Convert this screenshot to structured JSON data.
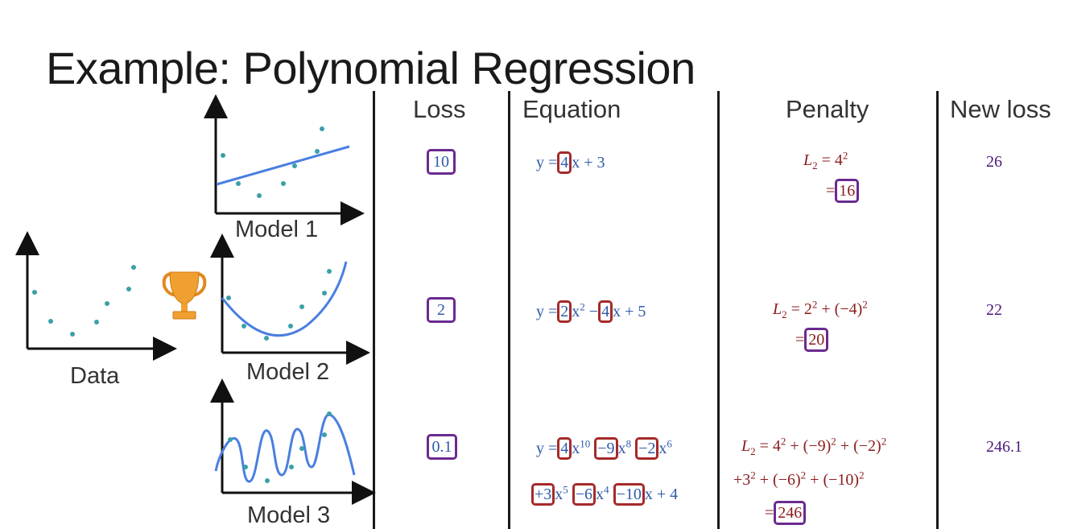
{
  "title": "Example: Polynomial Regression",
  "columns": {
    "loss": "Loss",
    "equation": "Equation",
    "penalty": "Penalty",
    "new_loss": "New loss"
  },
  "plots": {
    "data_label": "Data",
    "model1_label": "Model 1",
    "model2_label": "Model 2",
    "model3_label": "Model 3",
    "trophy": "trophy-icon"
  },
  "rows": [
    {
      "loss": "10",
      "new_loss": "26"
    },
    {
      "loss": "2",
      "new_loss": "22"
    },
    {
      "loss": "0.1",
      "new_loss": "246.1"
    }
  ],
  "equations": {
    "row1": {
      "y_eq": "y =",
      "c1": "4",
      "t1": "x + 3"
    },
    "row2": {
      "y_eq": "y =",
      "c1": "2",
      "t1": "x",
      "t1_exp": "2",
      "minus": " −",
      "c2": "4",
      "t2": "x + 5"
    },
    "row3": {
      "y_eq": "y =",
      "c1": "4",
      "t1": "x",
      "t1_exp": "10",
      "c2": "−9",
      "t2": "x",
      "t2_exp": "8",
      "c3": "−2",
      "t3": "x",
      "t3_exp": "6",
      "c4": "+3",
      "t4": "x",
      "t4_exp": "5",
      "c5": "−6",
      "t5": "x",
      "t5_exp": "4",
      "c6": "−10",
      "t6": "x + 4"
    }
  },
  "penalties": {
    "row1": {
      "lhs": "L",
      "sub": "2",
      "expr": " = 4",
      "expr_exp": "2",
      "eq": "=",
      "result": "16"
    },
    "row2": {
      "lhs": "L",
      "sub": "2",
      "expr_a": " = 2",
      "expr_a_exp": "2",
      "expr_b": " + (−4)",
      "expr_b_exp": "2",
      "eq": "=",
      "result": "20"
    },
    "row3": {
      "lhs": "L",
      "sub": "2",
      "l1a": " = 4",
      "l1a_exp": "2",
      "l1b": " + (−9)",
      "l1b_exp": "2",
      "l1c": " + (−2)",
      "l1c_exp": "2",
      "l2a": "+3",
      "l2a_exp": "2",
      "l2b": " + (−6)",
      "l2b_exp": "2",
      "l2c": " + (−10)",
      "l2c_exp": "2",
      "eq": "=",
      "result": "246"
    }
  },
  "colors": {
    "line": "#4a7fe0",
    "dot": "#3aa0a8",
    "box_red": "#a52a2a",
    "box_purple": "#6a2a8f",
    "trophy": "#f0a030"
  },
  "chart_data": [
    {
      "type": "scatter",
      "title": "",
      "xlabel": "Data",
      "points": [
        [
          1,
          6
        ],
        [
          2,
          3
        ],
        [
          3,
          2.2
        ],
        [
          4,
          3
        ],
        [
          5,
          4.6
        ],
        [
          6,
          6.2
        ],
        [
          6.3,
          8
        ]
      ]
    }
  ]
}
